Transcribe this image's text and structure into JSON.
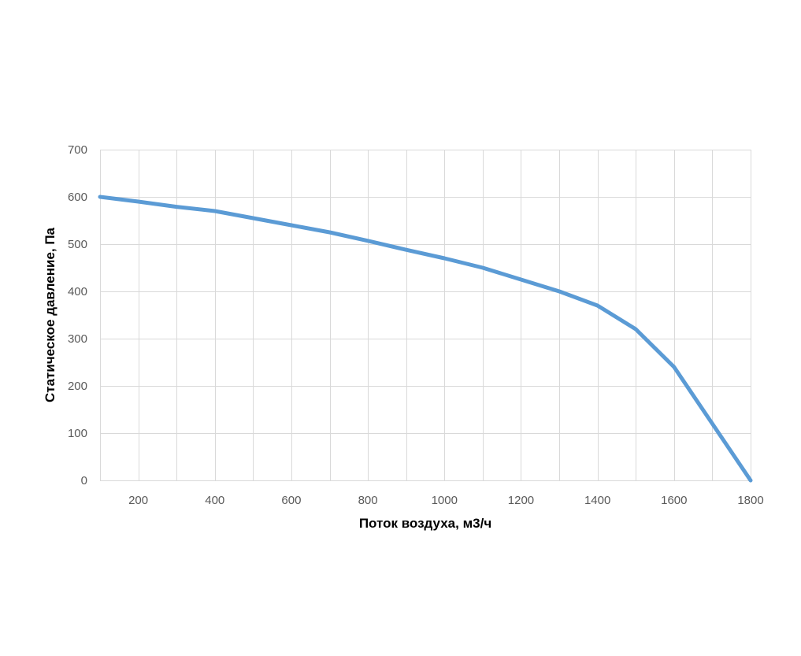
{
  "chart_data": {
    "type": "line",
    "title": "",
    "xlabel": "Поток воздуха, м3/ч",
    "ylabel": "Статическое давление, Па",
    "xlim": [
      100,
      1800
    ],
    "ylim": [
      0,
      700
    ],
    "x_ticks": [
      200,
      400,
      600,
      800,
      1000,
      1200,
      1400,
      1600,
      1800
    ],
    "y_ticks": [
      0,
      100,
      200,
      300,
      400,
      500,
      600,
      700
    ],
    "x_grid_step": 100,
    "y_grid_step": 100,
    "grid": true,
    "legend": "none",
    "series": [
      {
        "color": "#5b9bd5",
        "x": [
          100,
          200,
          300,
          400,
          500,
          600,
          700,
          800,
          900,
          1000,
          1100,
          1200,
          1300,
          1400,
          1500,
          1600,
          1700,
          1800
        ],
        "y": [
          600,
          590,
          579,
          570,
          555,
          540,
          525,
          507,
          488,
          470,
          450,
          425,
          400,
          370,
          320,
          240,
          120,
          0
        ]
      }
    ],
    "colors": {
      "grid": "#d9d9d9",
      "tick_text": "#595959",
      "axis_title_text": "#000000"
    }
  }
}
